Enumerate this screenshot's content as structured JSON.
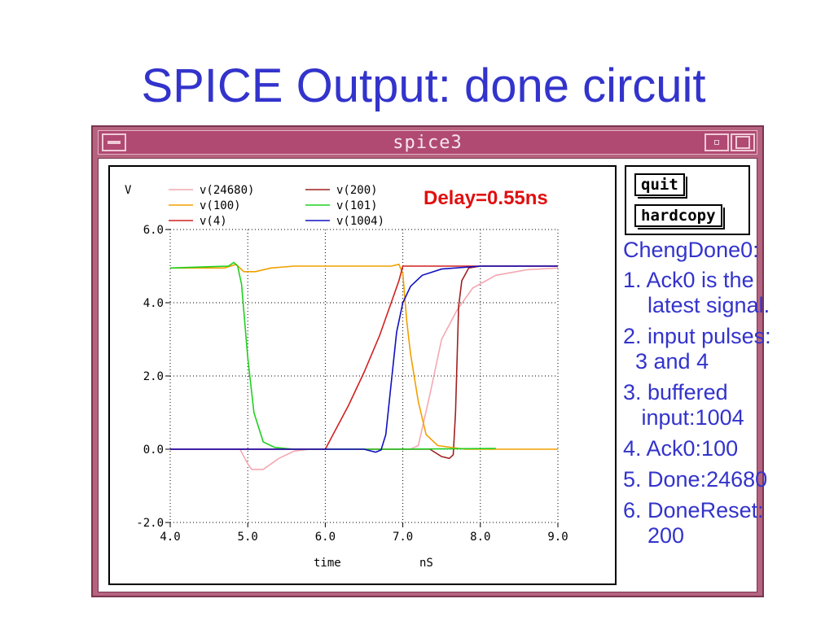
{
  "slide": {
    "title": "SPICE Output: done circuit"
  },
  "window": {
    "title": "spice3",
    "buttons": {
      "quit": "quit",
      "hardcopy": "hardcopy"
    }
  },
  "annotation": {
    "text": "Delay=0.55ns",
    "color": "#e01010"
  },
  "notes": [
    "ChengDone0:",
    "1. Ack0 is the\n    latest signal.",
    "2. input pulses:\n  3 and 4",
    "3. buffered\n   input:1004",
    "4. Ack0:100",
    "5. Done:24680",
    "6. DoneReset:\n    200"
  ],
  "colors": {
    "text_accent": "#3333cc",
    "window_frame": "#b5637e"
  },
  "chart_data": {
    "type": "line",
    "ylabel": "V",
    "xlabel": "time",
    "xunit": "nS",
    "xlim": [
      4.0,
      9.0
    ],
    "ylim": [
      -2.0,
      6.0
    ],
    "xticks": [
      4.0,
      5.0,
      6.0,
      7.0,
      8.0,
      9.0
    ],
    "xtick_labels": [
      "4.0",
      "5.0",
      "6.0",
      "7.0",
      "8.0",
      "9.0"
    ],
    "yticks": [
      6.0,
      4.0,
      2.0,
      0.0,
      -2.0
    ],
    "ytick_labels": [
      "6.0",
      "4.0",
      "2.0",
      "0.0",
      "-2.0"
    ],
    "grid": true,
    "legend_position": "top-left",
    "series": [
      {
        "name": "v(24680)",
        "color": "#f4a8b0",
        "points": [
          [
            4.0,
            0
          ],
          [
            4.9,
            0
          ],
          [
            5.0,
            -0.4
          ],
          [
            5.05,
            -0.55
          ],
          [
            5.2,
            -0.55
          ],
          [
            5.4,
            -0.25
          ],
          [
            5.6,
            -0.05
          ],
          [
            5.8,
            0
          ],
          [
            7.1,
            0
          ],
          [
            7.2,
            0.1
          ],
          [
            7.35,
            1.5
          ],
          [
            7.5,
            3.0
          ],
          [
            7.7,
            3.8
          ],
          [
            7.9,
            4.4
          ],
          [
            8.2,
            4.75
          ],
          [
            8.6,
            4.9
          ],
          [
            9.0,
            4.95
          ]
        ]
      },
      {
        "name": "v(200)",
        "color": "#a02020",
        "points": [
          [
            4.0,
            0
          ],
          [
            7.35,
            0
          ],
          [
            7.5,
            -0.2
          ],
          [
            7.6,
            -0.25
          ],
          [
            7.65,
            -0.15
          ],
          [
            7.68,
            1.0
          ],
          [
            7.72,
            3.9
          ],
          [
            7.76,
            4.6
          ],
          [
            7.85,
            4.95
          ],
          [
            8.0,
            5.0
          ],
          [
            9.0,
            5.0
          ]
        ]
      },
      {
        "name": "v(100)",
        "color": "#f0a000",
        "points": [
          [
            4.0,
            4.95
          ],
          [
            4.7,
            4.95
          ],
          [
            4.85,
            5.05
          ],
          [
            4.95,
            4.85
          ],
          [
            5.1,
            4.85
          ],
          [
            5.3,
            4.95
          ],
          [
            5.6,
            5.0
          ],
          [
            6.7,
            5.0
          ],
          [
            6.85,
            5.0
          ],
          [
            6.95,
            5.05
          ],
          [
            7.0,
            4.8
          ],
          [
            7.05,
            3.5
          ],
          [
            7.1,
            2.6
          ],
          [
            7.2,
            1.3
          ],
          [
            7.3,
            0.4
          ],
          [
            7.45,
            0.1
          ],
          [
            7.8,
            0.0
          ],
          [
            9.0,
            0.0
          ]
        ]
      },
      {
        "name": "v(101)",
        "color": "#20d020",
        "points": [
          [
            4.0,
            4.95
          ],
          [
            4.75,
            5.0
          ],
          [
            4.82,
            5.1
          ],
          [
            4.87,
            5.0
          ],
          [
            4.92,
            4.5
          ],
          [
            5.0,
            2.5
          ],
          [
            5.08,
            1.0
          ],
          [
            5.2,
            0.2
          ],
          [
            5.35,
            0.05
          ],
          [
            5.6,
            0.0
          ],
          [
            6.6,
            0.0
          ],
          [
            6.8,
            0.0
          ],
          [
            8.2,
            0.02
          ]
        ]
      },
      {
        "name": "v(4)",
        "color": "#d02020",
        "points": [
          [
            4.0,
            0
          ],
          [
            6.0,
            0
          ],
          [
            6.3,
            1.2
          ],
          [
            6.5,
            2.1
          ],
          [
            6.7,
            3.1
          ],
          [
            6.85,
            4.0
          ],
          [
            6.95,
            4.6
          ],
          [
            7.0,
            5.0
          ],
          [
            9.0,
            5.0
          ]
        ]
      },
      {
        "name": "v(1004)",
        "color": "#1010c0",
        "points": [
          [
            4.0,
            0
          ],
          [
            6.5,
            0
          ],
          [
            6.65,
            -0.08
          ],
          [
            6.72,
            -0.02
          ],
          [
            6.78,
            0.4
          ],
          [
            6.85,
            1.8
          ],
          [
            6.92,
            3.2
          ],
          [
            7.0,
            4.0
          ],
          [
            7.1,
            4.45
          ],
          [
            7.25,
            4.75
          ],
          [
            7.5,
            4.92
          ],
          [
            8.0,
            5.0
          ],
          [
            9.0,
            5.0
          ]
        ]
      }
    ]
  }
}
